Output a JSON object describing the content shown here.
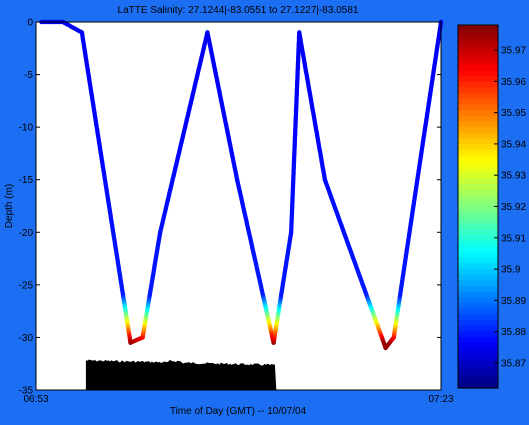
{
  "chart_data": {
    "type": "scatter",
    "title": "LaTTE Salinity: 27.1244|-83.0551 to 27.1227|-83.0581",
    "xlabel": "Time of Day (GMT) -- 10/07/04",
    "ylabel": "Depth (m)",
    "xlim": [
      "06:53",
      "07:23"
    ],
    "ylim": [
      -35,
      0
    ],
    "xtick_labels": [
      "06:53",
      "07:23"
    ],
    "yticks": [
      0,
      -5,
      -10,
      -15,
      -20,
      -25,
      -30,
      -35
    ],
    "ytick_labels": [
      "0",
      "-5",
      "-10",
      "-15",
      "-20",
      "-25",
      "-30",
      "-35"
    ],
    "grid": false,
    "colorbar": {
      "label_values": [
        35.97,
        35.96,
        35.95,
        35.94,
        35.93,
        35.92,
        35.91,
        35.9,
        35.89,
        35.88,
        35.87
      ],
      "labels": [
        "35.97",
        "35.96",
        "35.95",
        "35.94",
        "35.93",
        "35.92",
        "35.91",
        "35.9",
        "35.89",
        "35.88",
        "35.87"
      ],
      "range": [
        35.862,
        35.978
      ],
      "colormap": "jet"
    },
    "series": [
      {
        "time": [
          "06:53.4",
          "06:55.0",
          "06:56.4",
          "07:00.0",
          "07:00.9",
          "07:02.2",
          "07:05.7",
          "07:07.9",
          "07:10.6",
          "07:11.9",
          "07:12.5",
          "07:14.4",
          "07:18.9",
          "07:19.5",
          "07:23.0"
        ],
        "depth": [
          0,
          0,
          -1,
          -30.5,
          -30,
          -20,
          -1,
          -15,
          -30.5,
          -20,
          -1,
          -15,
          -31,
          -30,
          0
        ],
        "salinity_color_range": [
          35.87,
          35.97
        ]
      }
    ],
    "bottom_bathymetry": {
      "time_range": [
        "06:56.7",
        "07:10.8"
      ],
      "depth_range": [
        -32.9,
        -31.8
      ],
      "color": "#000000"
    }
  }
}
